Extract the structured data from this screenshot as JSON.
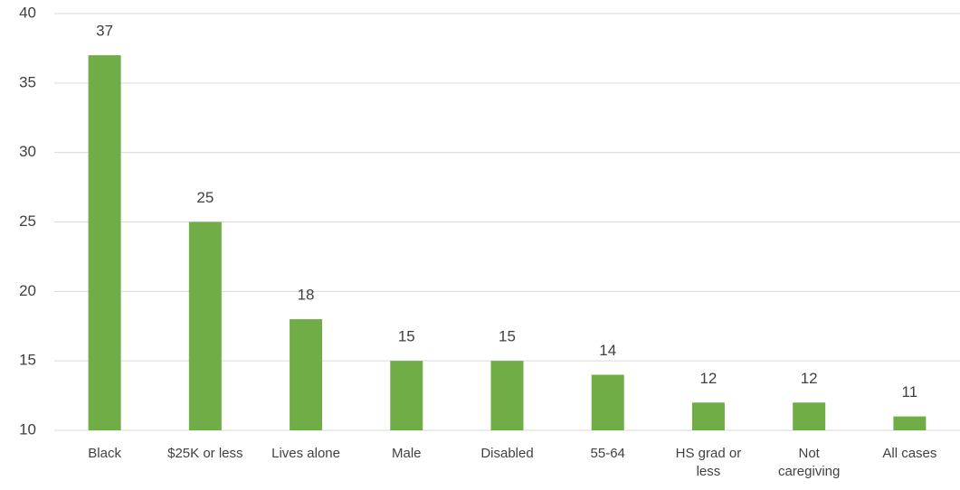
{
  "chart_data": {
    "type": "bar",
    "categories": [
      "Black",
      "$25K or less",
      "Lives alone",
      "Male",
      "Disabled",
      "55-64",
      "HS grad or less",
      "Not caregiving",
      "All cases"
    ],
    "values": [
      37,
      25,
      18,
      15,
      15,
      14,
      12,
      12,
      11
    ],
    "color": "#70ad47",
    "ylim": [
      10,
      40
    ],
    "yticks": [
      10,
      15,
      20,
      25,
      30,
      35,
      40
    ],
    "grid": true
  }
}
